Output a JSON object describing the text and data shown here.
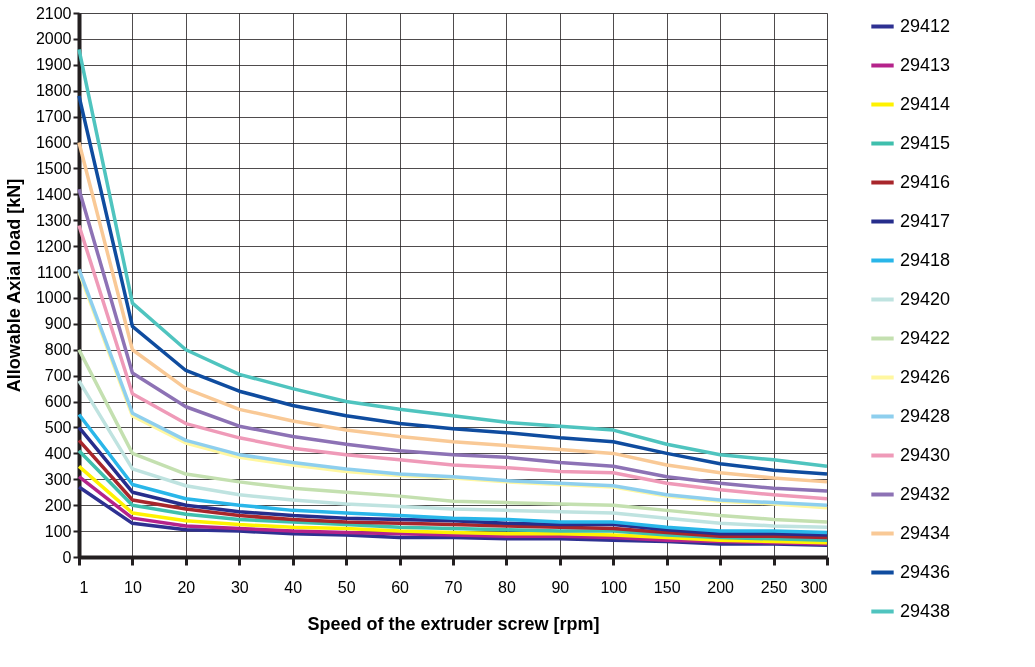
{
  "chart_data": {
    "type": "line",
    "xlabel": "Speed of the extruder screw [rpm]",
    "ylabel": "Allowable Axial load [kN]",
    "categories": [
      "1",
      "10",
      "20",
      "30",
      "40",
      "50",
      "60",
      "70",
      "80",
      "90",
      "100",
      "150",
      "200",
      "250",
      "300"
    ],
    "ylim": [
      0,
      2100
    ],
    "yticks": [
      0,
      100,
      200,
      300,
      400,
      500,
      600,
      700,
      800,
      900,
      1000,
      1100,
      1200,
      1300,
      1400,
      1500,
      1600,
      1700,
      1800,
      1900,
      2000,
      2100
    ],
    "grid": true,
    "legend": "right",
    "marker": "none",
    "line_style": "solid",
    "series": [
      {
        "name": "29412",
        "color": "#2e3192",
        "values": [
          270,
          130,
          105,
          100,
          90,
          85,
          75,
          75,
          70,
          70,
          65,
          60,
          50,
          50,
          45
        ]
      },
      {
        "name": "29413",
        "color": "#b5238b",
        "values": [
          310,
          150,
          120,
          110,
          100,
          95,
          90,
          85,
          80,
          80,
          75,
          65,
          60,
          55,
          50
        ]
      },
      {
        "name": "29414",
        "color": "#fff200",
        "values": [
          350,
          170,
          140,
          125,
          115,
          110,
          100,
          95,
          90,
          90,
          85,
          75,
          65,
          60,
          55
        ]
      },
      {
        "name": "29415",
        "color": "#3fbfad",
        "values": [
          410,
          200,
          165,
          145,
          135,
          125,
          115,
          110,
          105,
          100,
          100,
          85,
          75,
          70,
          65
        ]
      },
      {
        "name": "29416",
        "color": "#a8262b",
        "values": [
          450,
          220,
          185,
          160,
          145,
          135,
          130,
          125,
          120,
          115,
          110,
          95,
          80,
          80,
          75
        ]
      },
      {
        "name": "29417",
        "color": "#262d8c",
        "values": [
          500,
          250,
          200,
          175,
          160,
          150,
          145,
          140,
          130,
          125,
          125,
          105,
          90,
          90,
          85
        ]
      },
      {
        "name": "29418",
        "color": "#29b6e9",
        "values": [
          550,
          280,
          225,
          200,
          180,
          170,
          160,
          150,
          145,
          135,
          135,
          115,
          100,
          100,
          95
        ]
      },
      {
        "name": "29420",
        "color": "#bfe3e0",
        "values": [
          680,
          340,
          275,
          240,
          220,
          205,
          195,
          185,
          180,
          175,
          170,
          150,
          130,
          120,
          115
        ]
      },
      {
        "name": "29422",
        "color": "#c4e0b0",
        "values": [
          800,
          400,
          320,
          290,
          265,
          250,
          235,
          215,
          210,
          205,
          200,
          180,
          160,
          145,
          135
        ]
      },
      {
        "name": "29426",
        "color": "#fff7a0",
        "values": [
          1100,
          545,
          440,
          385,
          355,
          330,
          315,
          305,
          290,
          280,
          270,
          235,
          215,
          205,
          190
        ]
      },
      {
        "name": "29428",
        "color": "#8ecfee",
        "values": [
          1110,
          555,
          450,
          395,
          365,
          340,
          320,
          310,
          295,
          285,
          275,
          240,
          220,
          210,
          200
        ]
      },
      {
        "name": "29430",
        "color": "#ef9ab8",
        "values": [
          1280,
          630,
          515,
          460,
          420,
          395,
          375,
          355,
          345,
          330,
          325,
          285,
          260,
          240,
          225
        ]
      },
      {
        "name": "29432",
        "color": "#8d72b5",
        "values": [
          1420,
          710,
          580,
          505,
          465,
          435,
          410,
          395,
          385,
          365,
          350,
          310,
          285,
          265,
          255
        ]
      },
      {
        "name": "29434",
        "color": "#f9c996",
        "values": [
          1600,
          800,
          650,
          570,
          525,
          490,
          465,
          445,
          430,
          415,
          400,
          355,
          325,
          305,
          290
        ]
      },
      {
        "name": "29436",
        "color": "#0f4c9f",
        "values": [
          1780,
          890,
          720,
          640,
          585,
          545,
          515,
          495,
          480,
          460,
          445,
          400,
          360,
          335,
          320
        ]
      },
      {
        "name": "29438",
        "color": "#4fc4bf",
        "values": [
          1960,
          980,
          800,
          705,
          650,
          600,
          570,
          545,
          520,
          505,
          490,
          435,
          395,
          375,
          350
        ]
      }
    ]
  }
}
